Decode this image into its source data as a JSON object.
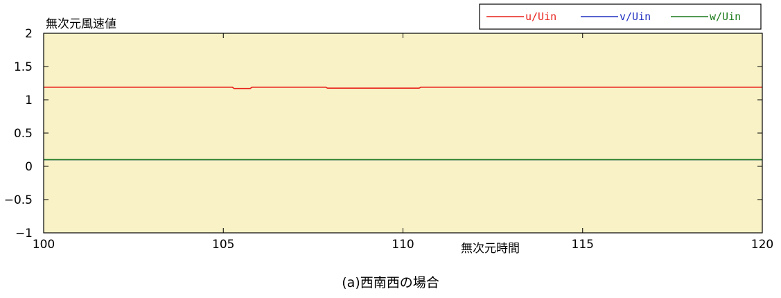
{
  "chart_data": {
    "type": "line",
    "title": "",
    "ylabel": "無次元風速値",
    "xlabel": "無次元時間",
    "caption": "(a)西南西の場合",
    "xlim": [
      100,
      120
    ],
    "ylim": [
      -1,
      2
    ],
    "x_ticks": [
      100,
      105,
      110,
      115,
      120
    ],
    "x_tick_labels": [
      "100",
      "105",
      "110",
      "115",
      "120"
    ],
    "y_ticks": [
      2,
      1.5,
      1,
      0.5,
      0,
      -0.5,
      -1
    ],
    "y_tick_labels": [
      "2",
      "1.5",
      "1",
      "0.5",
      "0",
      "−0.5",
      "−1"
    ],
    "plot_background": "#f8f2c6",
    "grid": false,
    "legend_position": "top-right",
    "series": [
      {
        "name": "u/Uin",
        "color": "#e8201a",
        "x": [
          100,
          105.25,
          105.3,
          105.75,
          105.8,
          107.85,
          107.9,
          110.45,
          110.5,
          120
        ],
        "y": [
          1.19,
          1.19,
          1.17,
          1.17,
          1.19,
          1.19,
          1.175,
          1.175,
          1.19,
          1.19
        ]
      },
      {
        "name": "v/Uin",
        "color": "#2030c0",
        "x": [
          100,
          120
        ],
        "y": [
          0.1,
          0.1
        ]
      },
      {
        "name": "w/Uin",
        "color": "#1a7a1a",
        "x": [
          100,
          120
        ],
        "y": [
          0.1,
          0.1
        ]
      }
    ]
  }
}
